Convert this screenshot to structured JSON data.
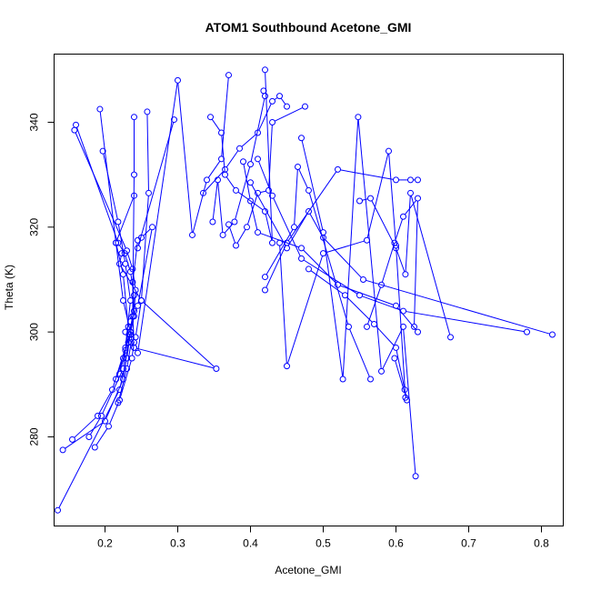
{
  "chart_data": {
    "type": "scatter",
    "mode": "points+lines",
    "title": "ATOM1 Southbound Acetone_GMI",
    "xlabel": "Acetone_GMI",
    "ylabel": "Theta (K)",
    "xlim": [
      0.13,
      0.83
    ],
    "ylim": [
      263,
      353
    ],
    "xticks": [
      0.2,
      0.3,
      0.4,
      0.5,
      0.6,
      0.7,
      0.8
    ],
    "xtick_labels": [
      "0.2",
      "0.3",
      "0.4",
      "0.5",
      "0.6",
      "0.7",
      "0.8"
    ],
    "yticks": [
      280,
      300,
      320,
      340
    ],
    "ytick_labels": [
      "280",
      "300",
      "320",
      "340"
    ],
    "grid": false,
    "color": "#0000ff",
    "series": [
      {
        "x": [
          0.135,
          0.22,
          0.23,
          0.235,
          0.225,
          0.215,
          0.24
        ],
        "y": [
          266,
          289,
          295,
          300,
          306,
          317,
          326
        ]
      },
      {
        "x": [
          0.142,
          0.2,
          0.225,
          0.232,
          0.24,
          0.238,
          0.245
        ],
        "y": [
          277.5,
          283,
          291,
          298,
          303,
          309.5,
          317.5
        ]
      },
      {
        "x": [
          0.155,
          0.19,
          0.21,
          0.228,
          0.235,
          0.228,
          0.218,
          0.197
        ],
        "y": [
          279.5,
          284,
          289,
          297,
          306,
          313,
          321,
          334.5
        ]
      },
      {
        "x": [
          0.178,
          0.195,
          0.225,
          0.232,
          0.225,
          0.215,
          0.193
        ],
        "y": [
          280,
          284,
          293,
          301,
          311,
          317,
          342.5
        ]
      },
      {
        "x": [
          0.186,
          0.205,
          0.22,
          0.237,
          0.24,
          0.238,
          0.24,
          0.24
        ],
        "y": [
          278,
          282,
          287,
          295,
          298,
          303,
          330,
          341
        ]
      },
      {
        "x": [
          0.215,
          0.225,
          0.233,
          0.238,
          0.24,
          0.235,
          0.227,
          0.218,
          0.16
        ],
        "y": [
          291,
          295,
          299.5,
          303,
          307,
          311.5,
          315,
          317,
          339.5
        ]
      },
      {
        "x": [
          0.22,
          0.228,
          0.235,
          0.24,
          0.242,
          0.238,
          0.23,
          0.158
        ],
        "y": [
          292,
          296.5,
          300,
          304,
          308,
          312,
          315.5,
          338.5
        ]
      },
      {
        "x": [
          0.218,
          0.23,
          0.236,
          0.242,
          0.25,
          0.26,
          0.258
        ],
        "y": [
          286.5,
          293,
          298,
          299,
          306,
          326.5,
          342
        ]
      },
      {
        "x": [
          0.228,
          0.235,
          0.245,
          0.265,
          0.25,
          0.245,
          0.295
        ],
        "y": [
          300,
          302,
          305,
          320,
          318,
          316,
          340.5
        ]
      },
      {
        "x": [
          0.235,
          0.24,
          0.353,
          0.25,
          0.22,
          0.223
        ],
        "y": [
          299.5,
          297,
          293,
          306,
          313,
          315
        ]
      },
      {
        "x": [
          0.24,
          0.245,
          0.3,
          0.32,
          0.34,
          0.36,
          0.37
        ],
        "y": [
          297,
          296,
          348,
          318.5,
          329,
          333,
          349
        ]
      },
      {
        "x": [
          0.345,
          0.36,
          0.365,
          0.38,
          0.42,
          0.43,
          0.42
        ],
        "y": [
          341,
          338,
          330,
          327,
          323,
          317,
          350
        ]
      },
      {
        "x": [
          0.348,
          0.355,
          0.362,
          0.378,
          0.4,
          0.42,
          0.418
        ],
        "y": [
          321,
          329,
          318.5,
          321,
          332,
          345,
          346
        ]
      },
      {
        "x": [
          0.335,
          0.365,
          0.385,
          0.41,
          0.43,
          0.44,
          0.45
        ],
        "y": [
          326.5,
          331,
          335,
          338,
          344,
          345,
          343
        ]
      },
      {
        "x": [
          0.37,
          0.38,
          0.395,
          0.41,
          0.425,
          0.43,
          0.475
        ],
        "y": [
          320.5,
          316.5,
          320,
          326.5,
          327,
          340,
          343
        ]
      },
      {
        "x": [
          0.39,
          0.4,
          0.41,
          0.47,
          0.52,
          0.6,
          0.63
        ],
        "y": [
          332.5,
          325,
          319,
          316,
          309,
          305,
          300
        ]
      },
      {
        "x": [
          0.41,
          0.43,
          0.47,
          0.55,
          0.61,
          0.78
        ],
        "y": [
          333,
          326,
          314,
          307,
          304,
          300
        ]
      },
      {
        "x": [
          0.4,
          0.45,
          0.48,
          0.5,
          0.555,
          0.815
        ],
        "y": [
          328.5,
          316,
          323,
          318,
          310,
          299.5
        ]
      },
      {
        "x": [
          0.42,
          0.46,
          0.465,
          0.48,
          0.535,
          0.565
        ],
        "y": [
          310.5,
          320,
          331.5,
          327,
          301,
          291
        ]
      },
      {
        "x": [
          0.42,
          0.45,
          0.52,
          0.6,
          0.62,
          0.63
        ],
        "y": [
          308,
          317,
          331,
          329,
          329,
          329
        ]
      },
      {
        "x": [
          0.44,
          0.45,
          0.5,
          0.56,
          0.59,
          0.6,
          0.613
        ],
        "y": [
          317,
          293.5,
          315,
          317.5,
          334.5,
          316.5,
          287.5
        ]
      },
      {
        "x": [
          0.47,
          0.5,
          0.527,
          0.548,
          0.58,
          0.61,
          0.627
        ],
        "y": [
          337,
          319,
          291,
          341,
          292.5,
          301,
          272.5
        ]
      },
      {
        "x": [
          0.48,
          0.53,
          0.57,
          0.6,
          0.612,
          0.615,
          0.598
        ],
        "y": [
          312,
          307,
          301.5,
          297,
          289,
          287,
          295
        ]
      },
      {
        "x": [
          0.55,
          0.565,
          0.6,
          0.613,
          0.62,
          0.675
        ],
        "y": [
          325,
          325.5,
          316,
          311,
          326.5,
          299
        ]
      },
      {
        "x": [
          0.56,
          0.58,
          0.598,
          0.61,
          0.63,
          0.625
        ],
        "y": [
          301,
          309,
          317,
          322,
          325.5,
          301
        ]
      }
    ]
  }
}
